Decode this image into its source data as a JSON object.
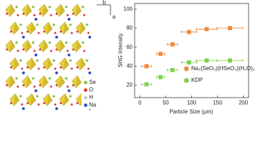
{
  "chart_data": {
    "type": "scatter",
    "xlabel": "Particle Size (μm)",
    "ylabel": "SHG Intensity",
    "xlim": [
      -10,
      210
    ],
    "ylim": [
      7,
      106
    ],
    "xticks": [
      0,
      50,
      100,
      150,
      200
    ],
    "yticks": [
      20,
      40,
      60,
      80,
      100
    ],
    "legend": "lower right",
    "series": [
      {
        "name": "Na₃(SeO₃)(HSeO₃)(H₂O)₂",
        "color": "#f08a3c",
        "x": [
          13,
          40,
          63,
          95,
          129,
          174
        ],
        "xerr": [
          10,
          8,
          10,
          15,
          20,
          25
        ],
        "values": [
          40,
          53,
          63,
          76,
          79,
          80
        ]
      },
      {
        "name": "KDP",
        "color": "#7ed04a",
        "x": [
          13,
          40,
          63,
          95,
          129,
          174
        ],
        "xerr": [
          10,
          8,
          10,
          15,
          20,
          25
        ],
        "values": [
          21,
          28.5,
          36,
          44,
          46,
          46
        ]
      }
    ]
  },
  "structure": {
    "axes": [
      "b",
      "a"
    ],
    "atoms": [
      {
        "label": "Se",
        "color": "#7fc24a"
      },
      {
        "label": "O",
        "color": "#e0302a"
      },
      {
        "label": "H",
        "color": "#c8c8c8"
      },
      {
        "label": "Na",
        "color": "#2a4fbf"
      }
    ]
  }
}
